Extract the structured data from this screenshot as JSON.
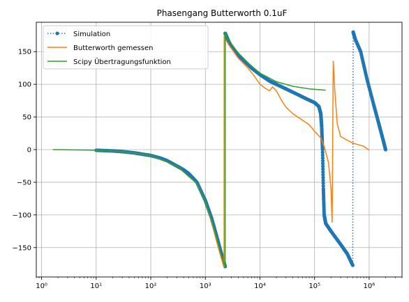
{
  "chart_data": {
    "type": "line",
    "title": "Phasengang Butterworth 0.1uF",
    "xlabel": "",
    "ylabel": "",
    "xscale": "log",
    "xlim": [
      0.8,
      4000000
    ],
    "ylim": [
      -195,
      195
    ],
    "x_ticks": [
      1,
      10,
      100,
      1000,
      10000,
      100000,
      1000000
    ],
    "x_tick_labels": [
      "10⁰",
      "10¹",
      "10²",
      "10³",
      "10⁴",
      "10⁵",
      "10⁶"
    ],
    "y_ticks": [
      -150,
      -100,
      -50,
      0,
      50,
      100,
      150
    ],
    "y_tick_labels": [
      "−150",
      "−100",
      "−50",
      "0",
      "50",
      "100",
      "150"
    ],
    "grid": true,
    "legend_position": "top-left",
    "series": [
      {
        "name": "Simulation",
        "color": "#1f77b4",
        "style": "dotted-markers",
        "points": [
          [
            10,
            -1
          ],
          [
            20,
            -2
          ],
          [
            30,
            -3
          ],
          [
            50,
            -5
          ],
          [
            70,
            -7
          ],
          [
            100,
            -9
          ],
          [
            150,
            -13
          ],
          [
            200,
            -17
          ],
          [
            300,
            -25
          ],
          [
            400,
            -31
          ],
          [
            500,
            -37
          ],
          [
            700,
            -50
          ],
          [
            1000,
            -78
          ],
          [
            1300,
            -105
          ],
          [
            1600,
            -132
          ],
          [
            1900,
            -155
          ],
          [
            2150,
            -170
          ],
          [
            2300,
            -179
          ],
          [
            2310,
            178
          ],
          [
            2400,
            175
          ],
          [
            2700,
            165
          ],
          [
            3000,
            158
          ],
          [
            4000,
            145
          ],
          [
            5000,
            137
          ],
          [
            7000,
            125
          ],
          [
            10000,
            115
          ],
          [
            15000,
            105
          ],
          [
            20000,
            100
          ],
          [
            30000,
            93
          ],
          [
            50000,
            84
          ],
          [
            70000,
            78
          ],
          [
            100000,
            72
          ],
          [
            120000,
            66
          ],
          [
            130000,
            55
          ],
          [
            135000,
            35
          ],
          [
            140000,
            0
          ],
          [
            145000,
            -60
          ],
          [
            150000,
            -100
          ],
          [
            160000,
            -113
          ],
          [
            200000,
            -125
          ],
          [
            300000,
            -145
          ],
          [
            400000,
            -160
          ],
          [
            500000,
            -177
          ],
          [
            510000,
            180
          ],
          [
            550000,
            170
          ],
          [
            700000,
            150
          ],
          [
            900000,
            110
          ],
          [
            1200000,
            70
          ],
          [
            1500000,
            40
          ],
          [
            1800000,
            15
          ],
          [
            2000000,
            0
          ]
        ]
      },
      {
        "name": "Butterworth gemessen",
        "color": "#ff7f0e",
        "style": "line",
        "points": [
          [
            10,
            -1
          ],
          [
            30,
            -3
          ],
          [
            100,
            -9
          ],
          [
            300,
            -25
          ],
          [
            700,
            -52
          ],
          [
            1000,
            -80
          ],
          [
            1300,
            -110
          ],
          [
            1600,
            -140
          ],
          [
            1900,
            -162
          ],
          [
            2100,
            -175
          ],
          [
            2200,
            -180
          ],
          [
            2210,
            175
          ],
          [
            2300,
            170
          ],
          [
            2700,
            160
          ],
          [
            3000,
            155
          ],
          [
            4000,
            140
          ],
          [
            6000,
            125
          ],
          [
            8000,
            112
          ],
          [
            10000,
            100
          ],
          [
            12000,
            95
          ],
          [
            15000,
            90
          ],
          [
            17000,
            96
          ],
          [
            20000,
            90
          ],
          [
            25000,
            75
          ],
          [
            30000,
            65
          ],
          [
            40000,
            55
          ],
          [
            60000,
            45
          ],
          [
            80000,
            38
          ],
          [
            100000,
            28
          ],
          [
            130000,
            18
          ],
          [
            150000,
            5
          ],
          [
            180000,
            -20
          ],
          [
            200000,
            -60
          ],
          [
            210000,
            -112
          ],
          [
            220000,
            136
          ],
          [
            235000,
            90
          ],
          [
            260000,
            40
          ],
          [
            300000,
            20
          ],
          [
            500000,
            10
          ],
          [
            800000,
            5
          ],
          [
            1000000,
            -1
          ]
        ]
      },
      {
        "name": "Scipy Übertragungsfunktion",
        "color": "#2ca02c",
        "style": "line",
        "points": [
          [
            1.6,
            0
          ],
          [
            5,
            -0.5
          ],
          [
            10,
            -1
          ],
          [
            30,
            -3
          ],
          [
            100,
            -9
          ],
          [
            300,
            -25
          ],
          [
            700,
            -52
          ],
          [
            1000,
            -80
          ],
          [
            1300,
            -108
          ],
          [
            1600,
            -135
          ],
          [
            1900,
            -158
          ],
          [
            2200,
            -175
          ],
          [
            2300,
            -179
          ],
          [
            2310,
            179
          ],
          [
            2500,
            172
          ],
          [
            3000,
            162
          ],
          [
            4000,
            148
          ],
          [
            6000,
            133
          ],
          [
            10000,
            117
          ],
          [
            20000,
            104
          ],
          [
            40000,
            97
          ],
          [
            80000,
            93
          ],
          [
            160000,
            91
          ]
        ]
      }
    ]
  }
}
